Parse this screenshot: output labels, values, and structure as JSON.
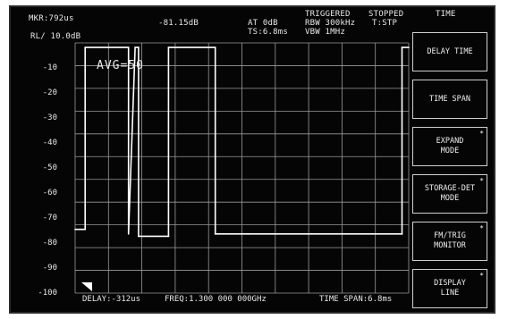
{
  "header": {
    "mkr_readout": "MKR:792us",
    "mkr_level": "-81.15dB",
    "att": "AT 0dB",
    "ts": "TS:6.8ms",
    "status_triggered": "TRIGGERED",
    "rbw": "RBW 300kHz",
    "vbw": "VBW 1MHz",
    "status_stopped": "STOPPED",
    "trig": "T:STP",
    "menu_title": "TIME",
    "ref_level": "RL/ 10.0dB"
  },
  "overlay": {
    "avg": "AVG=50"
  },
  "y_axis": {
    "labels": [
      "-10",
      "-20",
      "-30",
      "-40",
      "-50",
      "-60",
      "-70",
      "-80",
      "-90",
      "-100"
    ]
  },
  "footer": {
    "delay": "DELAY:-312us",
    "freq": "FREQ:1.300 000 000GHz",
    "span": "TIME SPAN:6.8ms"
  },
  "softkeys": [
    {
      "line1": "DELAY TIME",
      "line2": "",
      "dot": ""
    },
    {
      "line1": "TIME SPAN",
      "line2": "",
      "dot": ""
    },
    {
      "line1": "EXPAND",
      "line2": "MODE",
      "dot": "*"
    },
    {
      "line1": "STORAGE-DET",
      "line2": "MODE",
      "dot": "*"
    },
    {
      "line1": "FM/TRIG",
      "line2": "MONITOR",
      "dot": "*"
    },
    {
      "line1": "DISPLAY",
      "line2": "LINE",
      "dot": "*"
    }
  ],
  "chart_data": {
    "type": "line",
    "xlabel": "",
    "ylabel": "",
    "ylim": [
      -110,
      0
    ],
    "grid": true,
    "x": [
      0,
      0.03,
      0.03,
      0.16,
      0.16,
      0.18,
      0.19,
      0.19,
      0.28,
      0.28,
      0.42,
      0.42,
      0.52,
      0.52,
      0.98,
      0.98,
      1.0
    ],
    "series": [
      {
        "values": [
          -82,
          -82,
          -2,
          -2,
          -84,
          -2,
          -2,
          -85,
          -85,
          -2,
          -2,
          -84,
          -84,
          -84,
          -84,
          -2,
          -2
        ]
      }
    ]
  }
}
